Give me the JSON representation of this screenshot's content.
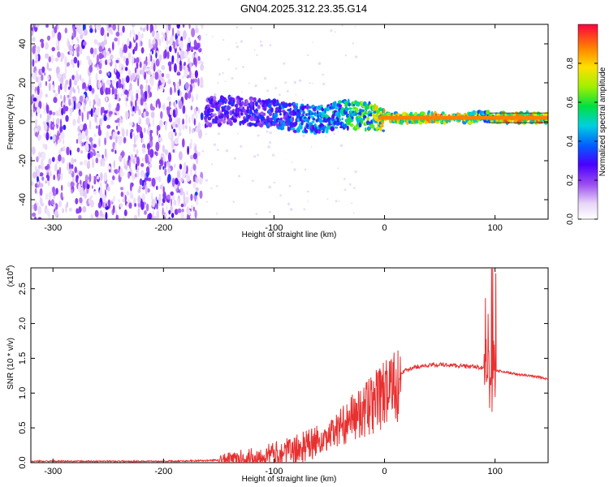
{
  "title": "GN04.2025.312.23.35.G14",
  "charts": [
    {
      "type": "heatmap",
      "xlabel": "Height of straight line (km)",
      "ylabel": "Frequency (Hz)",
      "xlim": [
        -320,
        148
      ],
      "ylim": [
        -50,
        50
      ],
      "xticks": [
        -300,
        -200,
        -100,
        0,
        100
      ],
      "yticks": [
        -40,
        -20,
        0,
        20,
        40
      ],
      "colorbar": {
        "label": "Normalized spectral amplitude",
        "range": [
          0,
          1
        ],
        "ticks": [
          "0.0",
          "0.2",
          "0.4",
          "0.6",
          "0.8"
        ],
        "tick_values": [
          0,
          0.2,
          0.4,
          0.6,
          0.8
        ]
      },
      "signal_band": [
        {
          "x": -162,
          "f": 5.0,
          "amp": 0.3
        },
        {
          "x": -140,
          "f": 6.0,
          "amp": 0.35
        },
        {
          "x": -120,
          "f": 5.0,
          "amp": 0.35
        },
        {
          "x": -100,
          "f": 4.0,
          "amp": 0.4
        },
        {
          "x": -80,
          "f": 2.0,
          "amp": 0.45
        },
        {
          "x": -60,
          "f": 1.0,
          "amp": 0.5
        },
        {
          "x": -40,
          "f": 4.0,
          "amp": 0.55
        },
        {
          "x": -20,
          "f": 3.0,
          "amp": 0.7
        },
        {
          "x": 0,
          "f": 2.0,
          "amp": 0.85
        },
        {
          "x": 20,
          "f": 2.0,
          "amp": 0.9
        },
        {
          "x": 50,
          "f": 2.0,
          "amp": 0.92
        },
        {
          "x": 80,
          "f": 2.0,
          "amp": 0.9
        },
        {
          "x": 92,
          "f": 3.0,
          "amp": 0.55
        },
        {
          "x": 100,
          "f": 2.0,
          "amp": 0.9
        },
        {
          "x": 148,
          "f": 2.0,
          "amp": 0.9
        }
      ],
      "noise_region": {
        "x_start": -320,
        "x_end": -165,
        "amp": 0.15
      }
    },
    {
      "type": "line",
      "xlabel": "Height of straight line (km)",
      "ylabel": "SNR (10 * v/v)",
      "multiplier_label": "(x10",
      "multiplier_exp": "4",
      "xlim": [
        -320,
        148
      ],
      "ylim": [
        0,
        2.8
      ],
      "xticks": [
        -300,
        -200,
        -100,
        0,
        100
      ],
      "yticks": [
        "0.0",
        "0.5",
        "1.0",
        "1.5",
        "2.0",
        "2.5"
      ],
      "ytick_values": [
        0,
        0.5,
        1.0,
        1.5,
        2.0,
        2.5
      ],
      "color": "#e83030",
      "series": [
        {
          "name": "SNR",
          "x": [
            -320,
            -250,
            -200,
            -160,
            -140,
            -120,
            -100,
            -80,
            -60,
            -50,
            -40,
            -30,
            -20,
            -10,
            0,
            10,
            20,
            30,
            40,
            50,
            60,
            70,
            80,
            90,
            95,
            98,
            100,
            110,
            120,
            130,
            140,
            148
          ],
          "y": [
            0.02,
            0.02,
            0.02,
            0.03,
            0.05,
            0.08,
            0.12,
            0.18,
            0.3,
            0.45,
            0.6,
            0.75,
            0.85,
            1.0,
            1.15,
            1.25,
            1.33,
            1.38,
            1.4,
            1.41,
            1.4,
            1.39,
            1.38,
            1.36,
            1.4,
            1.35,
            1.33,
            1.3,
            1.27,
            1.25,
            1.23,
            1.2
          ]
        }
      ]
    }
  ]
}
